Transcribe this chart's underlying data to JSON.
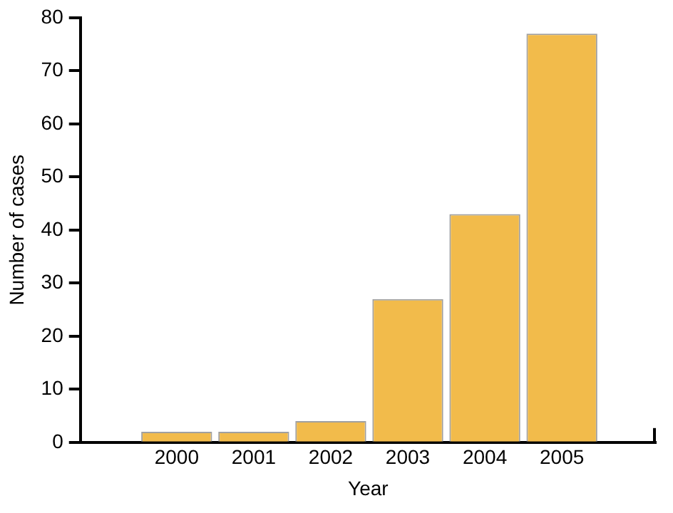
{
  "chart_data": {
    "type": "bar",
    "xlabel": "Year",
    "ylabel": "Number of cases",
    "categories": [
      "2000",
      "2001",
      "2002",
      "2003",
      "2004",
      "2005"
    ],
    "values": [
      2,
      2,
      4,
      27,
      43,
      77
    ],
    "color": "#f2bb4b",
    "ylim": [
      0,
      80
    ],
    "yticks": [
      0,
      10,
      20,
      30,
      40,
      50,
      60,
      70,
      80
    ],
    "grid": false,
    "legend": false
  }
}
